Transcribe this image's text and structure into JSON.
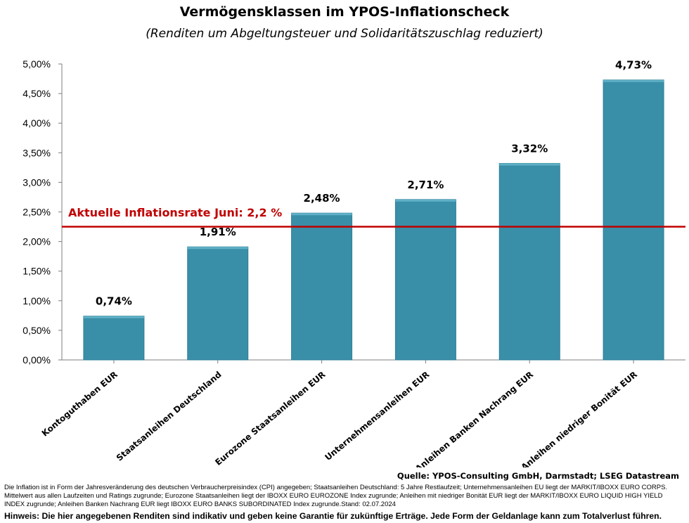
{
  "header": {
    "title": "Vermögensklassen im YPOS-Inflationscheck",
    "subtitle": "(Renditen um Abgeltungsteuer und Solidaritätszuschlag reduziert)"
  },
  "chart_data": {
    "type": "bar",
    "title": "Vermögensklassen im YPOS-Inflationscheck",
    "subtitle": "(Renditen um Abgeltungsteuer und Solidaritätszuschlag reduziert)",
    "categories": [
      "Kontoguthaben EUR",
      "Staatsanleihen Deutschland",
      "Eurozone Staatsanleihen EUR",
      "Unternehmensanleihen EUR",
      "Anleihen Banken Nachrang EUR",
      "Anleihen niedriger Bonität EUR"
    ],
    "values": [
      0.74,
      1.91,
      2.48,
      2.71,
      3.32,
      4.73
    ],
    "value_labels": [
      "0,74%",
      "1,91%",
      "2,48%",
      "2,71%",
      "3,32%",
      "4,73%"
    ],
    "ylim": [
      0,
      5
    ],
    "yticks": [
      0,
      0.5,
      1,
      1.5,
      2,
      2.5,
      3,
      3.5,
      4,
      4.5,
      5
    ],
    "ytick_labels": [
      "0,00%",
      "0,50%",
      "1,00%",
      "1,50%",
      "2,00%",
      "2,50%",
      "3,00%",
      "3,50%",
      "4,00%",
      "4,50%",
      "5,00%"
    ],
    "xlabel": "",
    "ylabel": "",
    "grid": false,
    "bar_color": "#3a8fa8",
    "reference_line": {
      "value": 2.25,
      "label": "Aktuelle Inflationsrate Juni: 2,2 %",
      "color": "#c00000"
    }
  },
  "footer": {
    "source": "Quelle: YPOS-Consulting GmbH, Darmstadt; LSEG Datastream",
    "note": "Die Inflation  ist in Form der Jahresveränderung des deutschen Verbraucherpreisindex (CPI) angegeben; Staatsanleihen Deutschland: 5 Jahre Restlaufzeit; Unternehmensanleihen EU liegt der MARKIT/IBOXX EURO CORPS. Mittelwert aus allen Laufzeiten und Ratings zugrunde; Eurozone Staatsanleihen liegt der IBOXX EURO EUROZONE Index zugrunde; Anleihen mit niedriger Bonität EUR liegt der MARKIT/IBOXX EURO LIQUID HIGH YIELD INDEX zugrunde; Anleihen Banken Nachrang EUR liegt IBOXX EURO BANKS SUBORDINATED Index zugrunde.Stand: 02.07.2024",
    "disclaimer": "Hinweis: Die hier angegebenen Renditen sind indikativ und geben keine Garantie für zukünftige Erträge. Jede Form der Geldanlage kann zum Totalverlust führen."
  }
}
